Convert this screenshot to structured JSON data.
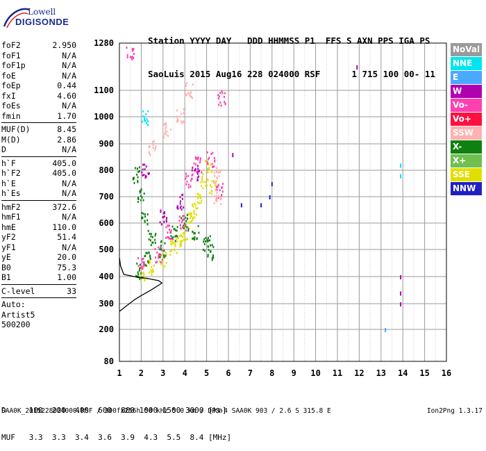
{
  "logo": {
    "line1": "Lowell",
    "line2": "DIGISONDE"
  },
  "header": {
    "line1": "Station YYYY DAY   DDD HHMMSS P1  FFS S AXN PPS IGA PS",
    "line2": "SaoLuis 2015 Aug16 228 024000 RSF      1 715 100 00- 11"
  },
  "params": {
    "group1": [
      {
        "k": "foF2",
        "v": "2.950"
      },
      {
        "k": "foF1",
        "v": "N/A"
      },
      {
        "k": "foF1p",
        "v": "N/A"
      },
      {
        "k": "foE",
        "v": "N/A"
      },
      {
        "k": "foEp",
        "v": "0.44"
      },
      {
        "k": "fxI",
        "v": "4.60"
      },
      {
        "k": "foEs",
        "v": "N/A"
      },
      {
        "k": "fmin",
        "v": "1.70"
      }
    ],
    "group2": [
      {
        "k": "MUF(D)",
        "v": "8.45"
      },
      {
        "k": "M(D)",
        "v": "2.86"
      },
      {
        "k": "D",
        "v": "N/A"
      }
    ],
    "group3": [
      {
        "k": "h`F",
        "v": "405.0"
      },
      {
        "k": "h`F2",
        "v": "405.0"
      },
      {
        "k": "h`E",
        "v": "N/A"
      },
      {
        "k": "h`Es",
        "v": "N/A"
      }
    ],
    "group4": [
      {
        "k": "hmF2",
        "v": "372.6"
      },
      {
        "k": "hmF1",
        "v": "N/A"
      },
      {
        "k": "hmE",
        "v": "110.0"
      },
      {
        "k": "yF2",
        "v": "51.4"
      },
      {
        "k": "yF1",
        "v": "N/A"
      },
      {
        "k": "yE",
        "v": "20.0"
      },
      {
        "k": "B0",
        "v": "75.3"
      },
      {
        "k": "B1",
        "v": "1.00"
      }
    ],
    "clevel": {
      "k": "C-level",
      "v": "33"
    },
    "auto": [
      "Auto:",
      "Artist5",
      "500200"
    ]
  },
  "legend": [
    {
      "label": "NoVal",
      "color": "#9a9a9a"
    },
    {
      "label": "NNE",
      "color": "#00e5f0"
    },
    {
      "label": "E",
      "color": "#4aa8ff"
    },
    {
      "label": "W",
      "color": "#b000b0"
    },
    {
      "label": "Vo-",
      "color": "#ff40b0"
    },
    {
      "label": "Vo+",
      "color": "#ff1040"
    },
    {
      "label": "SSW",
      "color": "#ffb0b0"
    },
    {
      "label": "X-",
      "color": "#108010"
    },
    {
      "label": "X+",
      "color": "#70c050"
    },
    {
      "label": "SSE",
      "color": "#e0e000"
    },
    {
      "label": "NNW",
      "color": "#2020c0"
    }
  ],
  "footer": {
    "line1": "D     100  200  400  600  800 1000 1500 3000 [km]",
    "line2": "MUF   3.3  3.3  3.4  3.6  3.9  4.3  5.5  8.4 [MHz]",
    "fileinfo": "SAA0K_2015228024000.RSF / 300fx256h 50 kHz 5.0 km / DPS-4 SAA0K 903 / 2.6 S 315.8 E",
    "version": "Ion2Png 1.3.17"
  },
  "chart_data": {
    "type": "scatter",
    "xlim": [
      1,
      16
    ],
    "ylim": [
      80,
      1280
    ],
    "xticks": [
      1,
      2,
      3,
      4,
      5,
      6,
      7,
      8,
      9,
      10,
      11,
      12,
      13,
      14,
      15,
      16
    ],
    "yticks": [
      80,
      200,
      300,
      400,
      500,
      600,
      700,
      800,
      900,
      1000,
      1100,
      1280
    ],
    "grid": true,
    "xlabel": "",
    "ylabel": "",
    "series": [
      {
        "name": "SSE",
        "color": "#e0e000",
        "points": [
          [
            2.1,
            410
          ],
          [
            2.5,
            430
          ],
          [
            3.0,
            460
          ],
          [
            3.5,
            500
          ],
          [
            4.0,
            560
          ],
          [
            4.3,
            610
          ],
          [
            4.6,
            680
          ],
          [
            4.9,
            760
          ],
          [
            5.1,
            820
          ],
          [
            5.3,
            730
          ],
          [
            4.4,
            640
          ],
          [
            3.8,
            540
          ]
        ]
      },
      {
        "name": "X-",
        "color": "#108010",
        "points": [
          [
            1.8,
            780
          ],
          [
            2.0,
            700
          ],
          [
            2.2,
            620
          ],
          [
            2.5,
            540
          ],
          [
            3.0,
            500
          ],
          [
            3.5,
            560
          ],
          [
            4.0,
            600
          ],
          [
            4.5,
            560
          ],
          [
            5.0,
            520
          ],
          [
            5.2,
            490
          ],
          [
            1.9,
            420
          ],
          [
            2.3,
            460
          ]
        ]
      },
      {
        "name": "Vo-",
        "color": "#ff40b0",
        "points": [
          [
            2.0,
            450
          ],
          [
            2.8,
            480
          ],
          [
            3.3,
            560
          ],
          [
            3.9,
            600
          ],
          [
            4.2,
            760
          ],
          [
            4.6,
            820
          ],
          [
            5.2,
            840
          ],
          [
            5.6,
            720
          ],
          [
            5.7,
            1070
          ],
          [
            1.5,
            1240
          ]
        ]
      },
      {
        "name": "W",
        "color": "#b000b0",
        "points": [
          [
            2.2,
            800
          ],
          [
            3.0,
            620
          ],
          [
            3.8,
            680
          ],
          [
            4.5,
            790
          ],
          [
            6.2,
            860
          ],
          [
            11.9,
            1190
          ],
          [
            13.9,
            400
          ],
          [
            13.9,
            340
          ],
          [
            13.9,
            300
          ]
        ]
      },
      {
        "name": "SSW",
        "color": "#ffb0b0",
        "points": [
          [
            2.5,
            880
          ],
          [
            3.2,
            950
          ],
          [
            3.8,
            1000
          ],
          [
            4.2,
            1100
          ],
          [
            5.5,
            780
          ],
          [
            5.5,
            700
          ]
        ]
      },
      {
        "name": "NNW",
        "color": "#2020c0",
        "points": [
          [
            6.6,
            670
          ],
          [
            7.5,
            670
          ],
          [
            7.9,
            700
          ],
          [
            8.0,
            750
          ]
        ]
      },
      {
        "name": "NNE",
        "color": "#00e5f0",
        "points": [
          [
            2.2,
            990
          ],
          [
            13.9,
            820
          ],
          [
            13.9,
            780
          ]
        ]
      },
      {
        "name": "E",
        "color": "#4aa8ff",
        "points": [
          [
            13.2,
            200
          ]
        ]
      }
    ],
    "trace": {
      "color": "#000000",
      "points": [
        [
          1.0,
          270
        ],
        [
          1.3,
          290
        ],
        [
          1.7,
          315
        ],
        [
          2.0,
          330
        ],
        [
          2.4,
          348
        ],
        [
          2.8,
          368
        ],
        [
          2.95,
          376
        ],
        [
          2.8,
          385
        ],
        [
          2.3,
          393
        ],
        [
          1.8,
          398
        ],
        [
          1.2,
          408
        ],
        [
          1.05,
          440
        ],
        [
          1.0,
          470
        ]
      ]
    }
  }
}
